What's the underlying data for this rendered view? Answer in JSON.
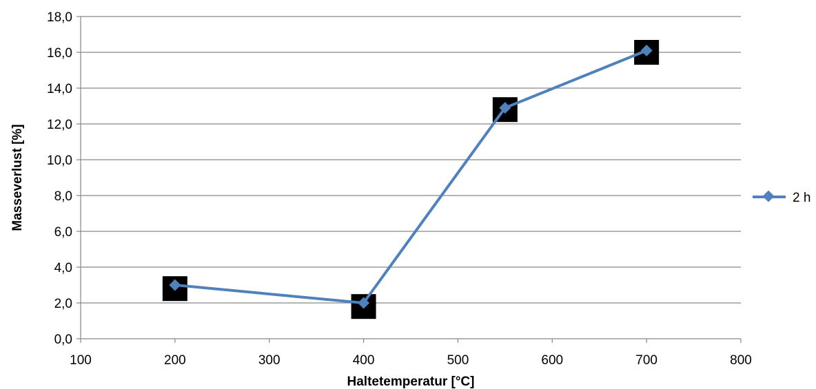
{
  "chart_data": {
    "type": "line",
    "xlabel": "Haltetemperatur [°C]",
    "ylabel": "Masseverlust [%]",
    "xlim": [
      100,
      800
    ],
    "ylim": [
      0,
      18
    ],
    "x_ticks": [
      "100",
      "200",
      "300",
      "400",
      "500",
      "600",
      "700",
      "800"
    ],
    "y_ticks": [
      "0,0",
      "2,0",
      "4,0",
      "6,0",
      "8,0",
      "10,0",
      "12,0",
      "14,0",
      "16,0",
      "18,0"
    ],
    "grid": "horizontal",
    "legend_position": "right",
    "series": [
      {
        "name": "2 h",
        "color": "#4F81BD",
        "marker": "diamond",
        "x": [
          200,
          400,
          550,
          700
        ],
        "y": [
          3.0,
          2.0,
          12.9,
          16.1
        ]
      }
    ],
    "annotation_markers": {
      "shape": "square",
      "color": "#000000",
      "x": [
        200,
        400,
        550,
        700
      ],
      "y": [
        2.8,
        1.8,
        12.8,
        16.0
      ]
    }
  }
}
